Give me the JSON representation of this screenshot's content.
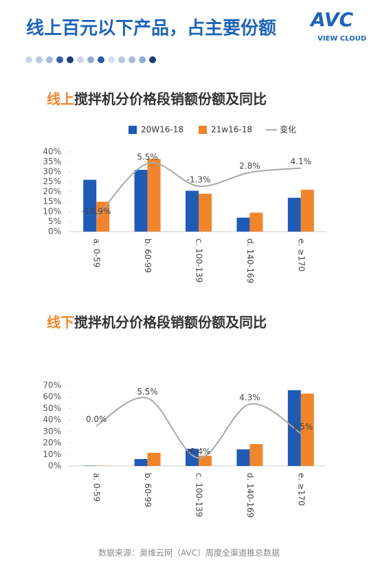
{
  "header": {
    "title": "线上百元以下产品，占主要份额",
    "logo": "AVC",
    "logo_sub": "VIEW CLOUD"
  },
  "footer": "数据来源：奥维云网（AVC）周度全渠道推总数据",
  "chart_data": [
    {
      "type": "bar",
      "title_lead": "线上",
      "title": "搅拌机分价格段销额份额及同比",
      "categories": [
        "a. 0-59",
        "b. 60-99",
        "c. 100-139",
        "d. 140-169",
        "e. ≥170"
      ],
      "series": [
        {
          "name": "20W16-18",
          "color": "#1f5bb5",
          "values": [
            26,
            31,
            20.5,
            7,
            17
          ]
        },
        {
          "name": "21w16-18",
          "color": "#f0852d",
          "values": [
            15,
            36.5,
            19,
            9.5,
            21
          ]
        },
        {
          "name": "变化",
          "color": "#a8a8a8",
          "type": "line",
          "axis": "y2",
          "values": [
            -10.9,
            5.5,
            -1.3,
            2.8,
            4.1
          ],
          "value_labels": [
            "-10.9%",
            "5.5%",
            "-1.3%",
            "2.8%",
            "4.1%"
          ]
        }
      ],
      "ylim": [
        0,
        40
      ],
      "yticks": [
        {
          "value": 0,
          "label": "0%"
        },
        {
          "value": 5,
          "label": "5%"
        },
        {
          "value": 10,
          "label": "10%"
        },
        {
          "value": 15,
          "label": "15%"
        },
        {
          "value": 20,
          "label": "20%"
        },
        {
          "value": 25,
          "label": "25%"
        },
        {
          "value": 30,
          "label": "30%"
        },
        {
          "value": 35,
          "label": "35%"
        },
        {
          "value": 40,
          "label": "40%"
        }
      ],
      "y2lim": [
        -15,
        9
      ],
      "legend": "top"
    },
    {
      "type": "bar",
      "title_lead": "线下",
      "title": "搅拌机分价格段销额份额及同比",
      "categories": [
        "a. 0-59",
        "b. 60-99",
        "c. 100-139",
        "d. 140-169",
        "e. ≥170"
      ],
      "series": [
        {
          "name": "20W16-18",
          "color": "#1f5bb5",
          "values": [
            0.3,
            6,
            15,
            14.5,
            66
          ]
        },
        {
          "name": "21w16-18",
          "color": "#f0852d",
          "values": [
            0.3,
            11.5,
            9,
            19,
            63
          ]
        },
        {
          "name": "变化",
          "color": "#a8a8a8",
          "type": "line",
          "axis": "y2",
          "values": [
            0.0,
            5.5,
            -6.4,
            4.3,
            -1.5
          ],
          "value_labels": [
            "0.0%",
            "5.5%",
            "-6.4%",
            "4.3%",
            "-1.5%"
          ]
        }
      ],
      "ylim": [
        0,
        70
      ],
      "yticks": [
        {
          "value": 0,
          "label": "0%"
        },
        {
          "value": 10,
          "label": "10%"
        },
        {
          "value": 20,
          "label": "20%"
        },
        {
          "value": 30,
          "label": "30%"
        },
        {
          "value": 40,
          "label": "40%"
        },
        {
          "value": 50,
          "label": "50%"
        },
        {
          "value": 60,
          "label": "60%"
        },
        {
          "value": 70,
          "label": "70%"
        }
      ],
      "y2lim": [
        -8,
        8
      ]
    }
  ]
}
